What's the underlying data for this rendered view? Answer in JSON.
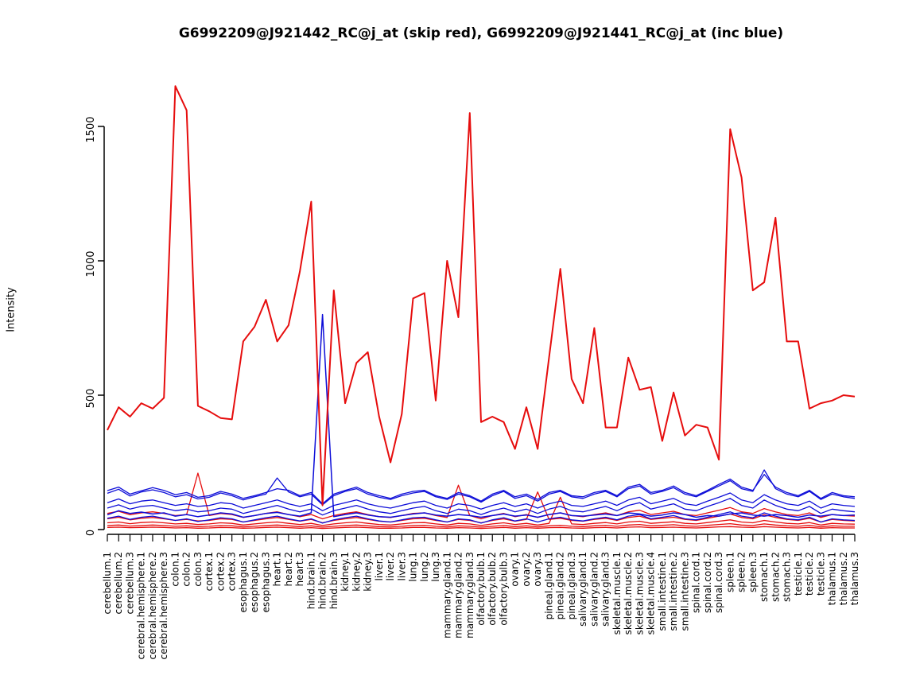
{
  "chart_data": {
    "type": "line",
    "title": "G6992209@J921442_RC@j_at (skip red), G6992209@J921441_RC@j_at (inc blue)",
    "ylabel": "Intensity",
    "xlabel": "",
    "yticks": [
      0,
      500,
      1000,
      1500
    ],
    "ylim": [
      0,
      1700
    ],
    "grid": false,
    "legend_position": "none",
    "colors": {
      "red": "#e60d0d",
      "blue": "#0d0dd8",
      "axis": "#000000"
    },
    "categories": [
      "cerebellum.1",
      "cerebellum.2",
      "cerebellum.3",
      "cerebral.hemisphere.1",
      "cerebral.hemisphere.2",
      "cerebral.hemisphere.3",
      "colon.1",
      "colon.2",
      "colon.3",
      "cortex.1",
      "cortex.2",
      "cortex.3",
      "esophagus.1",
      "esophagus.2",
      "esophagus.3",
      "heart.1",
      "heart.2",
      "heart.3",
      "hind.brain.1",
      "hind.brain.2",
      "hind.brain.3",
      "kidney.1",
      "kidney.2",
      "kidney.3",
      "liver.1",
      "liver.2",
      "liver.3",
      "lung.1",
      "lung.2",
      "lung.3",
      "mammary.gland.1",
      "mammary.gland.2",
      "mammary.gland.3",
      "olfactory.bulb.1",
      "olfactory.bulb.2",
      "olfactory.bulb.3",
      "ovary.1",
      "ovary.2",
      "ovary.3",
      "pineal.gland.1",
      "pineal.gland.2",
      "pineal.gland.3",
      "salivary.gland.1",
      "salivary.gland.2",
      "salivary.gland.3",
      "skeletal.muscle.1",
      "skeletal.muscle.2",
      "skeletal.muscle.3",
      "skeletal.muscle.4",
      "small.intestine.1",
      "small.intestine.2",
      "small.intestine.3",
      "spinal.cord.1",
      "spinal.cord.2",
      "spinal.cord.3",
      "spleen.1",
      "spleen.2",
      "spleen.3",
      "stomach.1",
      "stomach.2",
      "stomach.3",
      "testicle.1",
      "testicle.2",
      "testicle.3",
      "thalamus.1",
      "thalamus.2",
      "thalamus.3"
    ],
    "series": [
      {
        "name": "skip-red-2",
        "group": "G6992209@J921442_RC@j_at (skip red)",
        "color": "red",
        "width": 1.3,
        "values": [
          60,
          68,
          55,
          62,
          66,
          60,
          52,
          56,
          210,
          52,
          60,
          56,
          45,
          52,
          60,
          66,
          56,
          48,
          56,
          40,
          52,
          60,
          66,
          56,
          48,
          45,
          52,
          60,
          62,
          52,
          45,
          165,
          52,
          40,
          52,
          60,
          48,
          56,
          45,
          56,
          62,
          52,
          48,
          56,
          62,
          52,
          66,
          72,
          56,
          62,
          68,
          56,
          52,
          62,
          72,
          82,
          66,
          60,
          78,
          66,
          56,
          52,
          62,
          45,
          56,
          52,
          50
        ]
      },
      {
        "name": "skip-red-3",
        "group": "G6992209@J921442_RC@j_at (skip red)",
        "color": "red",
        "width": 1.3,
        "values": [
          40,
          46,
          36,
          42,
          45,
          40,
          34,
          38,
          32,
          34,
          40,
          38,
          28,
          34,
          40,
          45,
          38,
          31,
          38,
          25,
          34,
          40,
          45,
          38,
          31,
          28,
          34,
          40,
          42,
          34,
          28,
          38,
          34,
          25,
          34,
          40,
          31,
          38,
          140,
          38,
          42,
          34,
          31,
          38,
          42,
          34,
          45,
          50,
          38,
          42,
          46,
          38,
          34,
          42,
          50,
          58,
          45,
          40,
          55,
          45,
          38,
          34,
          42,
          28,
          38,
          34,
          32
        ]
      },
      {
        "name": "skip-red-4",
        "group": "G6992209@J921442_RC@j_at (skip red)",
        "color": "red",
        "width": 1.3,
        "values": [
          25,
          28,
          22,
          26,
          28,
          25,
          21,
          23,
          19,
          21,
          25,
          23,
          17,
          21,
          25,
          28,
          23,
          19,
          23,
          15,
          21,
          25,
          28,
          23,
          19,
          17,
          21,
          25,
          26,
          21,
          17,
          23,
          21,
          15,
          21,
          25,
          19,
          23,
          17,
          23,
          120,
          21,
          19,
          23,
          26,
          21,
          28,
          31,
          23,
          26,
          29,
          23,
          21,
          26,
          31,
          36,
          28,
          25,
          34,
          28,
          23,
          21,
          26,
          17,
          23,
          21,
          20
        ]
      },
      {
        "name": "skip-red-5",
        "group": "G6992209@J921442_RC@j_at (skip red)",
        "color": "red",
        "width": 1.3,
        "values": [
          15,
          17,
          13,
          15,
          17,
          15,
          12,
          14,
          11,
          12,
          15,
          14,
          10,
          12,
          15,
          17,
          14,
          11,
          14,
          9,
          12,
          15,
          17,
          14,
          11,
          10,
          12,
          15,
          16,
          12,
          10,
          14,
          12,
          9,
          12,
          15,
          11,
          14,
          10,
          14,
          16,
          12,
          11,
          14,
          16,
          12,
          17,
          19,
          14,
          16,
          18,
          14,
          12,
          16,
          19,
          22,
          17,
          15,
          21,
          17,
          14,
          12,
          16,
          10,
          14,
          12,
          12
        ]
      },
      {
        "name": "skip-red-6",
        "group": "G6992209@J921442_RC@j_at (skip red)",
        "color": "red",
        "width": 1.3,
        "values": [
          8,
          9,
          7,
          8,
          9,
          8,
          6,
          7,
          5,
          6,
          8,
          7,
          5,
          6,
          8,
          9,
          7,
          5,
          7,
          4,
          6,
          8,
          9,
          7,
          5,
          5,
          6,
          8,
          8,
          6,
          5,
          7,
          6,
          4,
          6,
          8,
          5,
          7,
          5,
          7,
          8,
          6,
          5,
          7,
          8,
          6,
          9,
          10,
          7,
          8,
          9,
          7,
          6,
          8,
          10,
          11,
          9,
          8,
          11,
          9,
          7,
          6,
          8,
          5,
          7,
          6,
          6
        ]
      },
      {
        "name": "inc-blue-2",
        "group": "G6992209@J921441_RC@j_at (inc blue)",
        "color": "blue",
        "width": 1.3,
        "values": [
          135,
          150,
          125,
          140,
          148,
          138,
          122,
          130,
          114,
          120,
          136,
          126,
          110,
          122,
          132,
          192,
          140,
          122,
          132,
          92,
          126,
          142,
          152,
          132,
          120,
          112,
          126,
          136,
          142,
          122,
          112,
          132,
          122,
          102,
          126,
          142,
          116,
          126,
          106,
          132,
          142,
          122,
          116,
          132,
          142,
          122,
          152,
          162,
          132,
          142,
          156,
          132,
          122,
          142,
          162,
          182,
          152,
          142,
          222,
          152,
          132,
          122,
          142,
          112,
          132,
          122,
          116
        ]
      },
      {
        "name": "inc-blue-3",
        "group": "G6992209@J921441_RC@j_at (inc blue)",
        "color": "blue",
        "width": 1.3,
        "values": [
          100,
          114,
          96,
          106,
          110,
          100,
          90,
          96,
          86,
          90,
          100,
          96,
          80,
          90,
          100,
          110,
          96,
          86,
          96,
          70,
          90,
          100,
          110,
          96,
          86,
          80,
          90,
          100,
          106,
          90,
          80,
          96,
          90,
          76,
          90,
          100,
          86,
          96,
          80,
          96,
          106,
          90,
          86,
          96,
          106,
          90,
          110,
          120,
          96,
          106,
          116,
          96,
          90,
          106,
          120,
          136,
          110,
          100,
          130,
          110,
          96,
          90,
          106,
          80,
          96,
          90,
          86
        ]
      },
      {
        "name": "inc-blue-4",
        "group": "G6992209@J921441_RC@j_at (inc blue)",
        "color": "blue",
        "width": 1.3,
        "values": [
          80,
          92,
          76,
          86,
          90,
          80,
          70,
          76,
          66,
          70,
          80,
          76,
          60,
          70,
          80,
          90,
          76,
          66,
          76,
          54,
          70,
          80,
          90,
          76,
          66,
          60,
          70,
          80,
          86,
          70,
          60,
          76,
          70,
          56,
          70,
          80,
          66,
          76,
          60,
          76,
          86,
          70,
          66,
          76,
          86,
          70,
          90,
          100,
          76,
          86,
          96,
          76,
          70,
          86,
          100,
          116,
          90,
          80,
          110,
          90,
          76,
          70,
          86,
          60,
          76,
          70,
          66
        ]
      },
      {
        "name": "inc-blue-5",
        "group": "G6992209@J921441_RC@j_at (inc blue)",
        "color": "blue",
        "width": 1.3,
        "values": [
          42,
          50,
          38,
          46,
          50,
          42,
          34,
          40,
          30,
          36,
          44,
          40,
          28,
          36,
          44,
          50,
          40,
          32,
          40,
          24,
          36,
          44,
          50,
          40,
          32,
          28,
          36,
          44,
          46,
          36,
          28,
          40,
          36,
          24,
          36,
          44,
          32,
          40,
          28,
          40,
          46,
          36,
          32,
          40,
          46,
          36,
          50,
          56,
          40,
          46,
          52,
          40,
          36,
          46,
          56,
          66,
          50,
          44,
          62,
          50,
          40,
          36,
          46,
          28,
          40,
          36,
          34
        ]
      },
      {
        "name": "inc-blue-6",
        "group": "G6992209@J921441_RC@j_at (inc blue)",
        "color": "blue",
        "width": 1.3,
        "values": [
          145,
          158,
          132,
          144,
          156,
          146,
          130,
          138,
          120,
          126,
          142,
          132,
          116,
          126,
          138,
          152,
          146,
          126,
          138,
          96,
          132,
          146,
          158,
          138,
          126,
          116,
          132,
          142,
          146,
          126,
          116,
          138,
          126,
          106,
          132,
          146,
          122,
          132,
          112,
          138,
          146,
          126,
          122,
          138,
          146,
          126,
          158,
          168,
          138,
          146,
          162,
          138,
          126,
          146,
          168,
          188,
          158,
          146,
          205,
          158,
          138,
          126,
          146,
          116,
          138,
          126,
          122
        ]
      },
      {
        "name": "inc-blue-1-spike",
        "group": "G6992209@J921441_RC@j_at (inc blue)",
        "color": "blue",
        "width": 1.5,
        "values": [
          55,
          70,
          60,
          65,
          58,
          62,
          50,
          56,
          48,
          54,
          62,
          58,
          46,
          52,
          60,
          64,
          56,
          50,
          62,
          800,
          48,
          56,
          62,
          54,
          48,
          46,
          52,
          58,
          62,
          54,
          50,
          56,
          52,
          46,
          52,
          58,
          50,
          54,
          46,
          56,
          62,
          52,
          50,
          54,
          58,
          52,
          62,
          58,
          50,
          54,
          62,
          56,
          46,
          52,
          50,
          58,
          62,
          54,
          50,
          56,
          52,
          46,
          54,
          50,
          56,
          52,
          54
        ]
      },
      {
        "name": "skip-red-1-main",
        "group": "G6992209@J921442_RC@j_at (skip red)",
        "color": "red",
        "width": 2,
        "values": [
          370,
          455,
          420,
          470,
          450,
          490,
          1650,
          1560,
          460,
          440,
          415,
          410,
          700,
          755,
          855,
          700,
          760,
          960,
          1220,
          90,
          890,
          470,
          620,
          660,
          420,
          250,
          430,
          860,
          880,
          480,
          1000,
          790,
          1550,
          400,
          420,
          400,
          300,
          455,
          300,
          640,
          970,
          560,
          470,
          750,
          380,
          380,
          640,
          520,
          530,
          330,
          510,
          350,
          390,
          380,
          260,
          1490,
          1310,
          890,
          920,
          1160,
          700,
          700,
          450,
          470,
          480,
          500,
          495
        ]
      }
    ]
  }
}
